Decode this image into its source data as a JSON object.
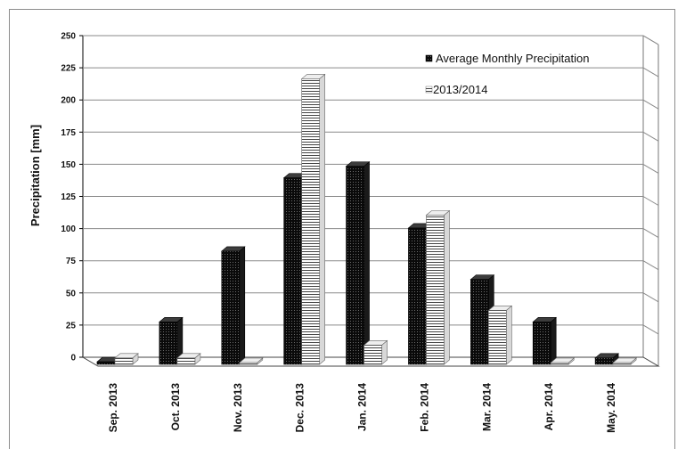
{
  "chart_data": {
    "type": "bar",
    "title": "",
    "xlabel": "",
    "ylabel": "Precipitation  [mm]",
    "ylim": [
      0,
      250
    ],
    "yticks": [
      0,
      25,
      50,
      75,
      100,
      125,
      150,
      175,
      200,
      225,
      250
    ],
    "categories": [
      "Sep. 2013",
      "Oct. 2013",
      "Nov. 2013",
      "Dec. 2013",
      "Jan. 2014",
      "Feb. 2014",
      "Mar. 2014",
      "Apr. 2014",
      "May. 2014"
    ],
    "series": [
      {
        "name": "Average Monthly Precipitation",
        "values": [
          2,
          33,
          88,
          145,
          154,
          106,
          66,
          33,
          5
        ],
        "color": "#0d0d0d",
        "pattern": "dotted-dark"
      },
      {
        "name": "2013/2014",
        "values": [
          5,
          5,
          1,
          222,
          15,
          116,
          42,
          0,
          0
        ],
        "color": "#ffffff",
        "pattern": "horizontal-lines"
      }
    ],
    "grid": true,
    "legend": "top-right",
    "style": "3d"
  }
}
